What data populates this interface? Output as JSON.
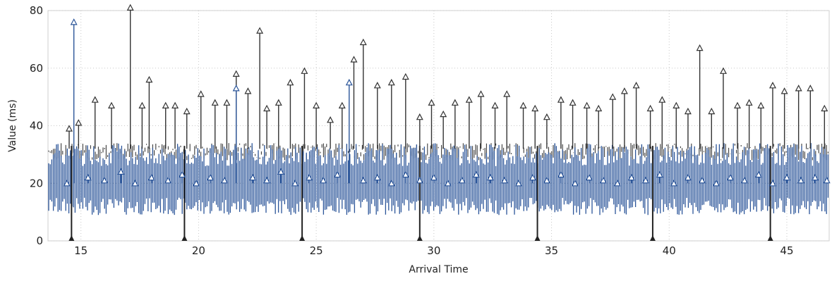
{
  "chart_data": {
    "type": "line",
    "title": "",
    "xlabel": "Arrival Time",
    "ylabel": "Value (ms)",
    "xlim": [
      13.6,
      46.8
    ],
    "ylim": [
      0,
      80
    ],
    "x_ticks": [
      "15",
      "20",
      "25",
      "30",
      "35",
      "40",
      "45"
    ],
    "y_ticks": [
      "0",
      "20",
      "40",
      "60",
      "80"
    ],
    "x_tick_values": [
      15,
      20,
      25,
      30,
      35,
      40,
      45
    ],
    "y_tick_values": [
      0,
      20,
      40,
      60,
      80
    ],
    "grid": true,
    "legend": "none",
    "series_colors": [
      "#333333",
      "#2b5599"
    ],
    "marker": "triangle",
    "series": [
      {
        "x": [
          14.5,
          14.9,
          15.6,
          16.3,
          17.1,
          17.6,
          17.9,
          18.6,
          19.0,
          19.5,
          20.1,
          20.7,
          21.2,
          21.6,
          22.1,
          22.6,
          22.9,
          23.4,
          23.9,
          24.5,
          25.0,
          25.6,
          26.1,
          26.6,
          27.0,
          27.6,
          28.2,
          28.8,
          29.4,
          29.9,
          30.4,
          30.9,
          31.5,
          32.0,
          32.6,
          33.1,
          33.8,
          34.3,
          34.8,
          35.4,
          35.9,
          36.5,
          37.0,
          37.6,
          38.1,
          38.6,
          39.2,
          39.7,
          40.3,
          40.8,
          41.3,
          41.8,
          42.3,
          42.9,
          43.4,
          43.9,
          44.4,
          44.9,
          45.5,
          46.0,
          46.6
        ],
        "values": [
          39,
          41,
          49,
          47,
          81,
          47,
          56,
          47,
          47,
          45,
          51,
          48,
          48,
          58,
          52,
          73,
          46,
          48,
          55,
          59,
          47,
          42,
          47,
          63,
          69,
          54,
          55,
          57,
          43,
          48,
          44,
          48,
          49,
          51,
          47,
          51,
          47,
          46,
          43,
          49,
          48,
          47,
          46,
          50,
          52,
          54,
          46,
          49,
          47,
          45,
          67,
          45,
          59,
          47,
          48,
          47,
          54,
          52,
          53,
          53,
          46
        ]
      },
      {
        "x": [
          14.4,
          14.7,
          15.3,
          16.0,
          16.7,
          17.3,
          18.0,
          18.7,
          19.3,
          19.9,
          20.5,
          21.1,
          21.6,
          22.3,
          22.9,
          23.5,
          24.1,
          24.7,
          25.3,
          25.9,
          26.4,
          27.0,
          27.6,
          28.2,
          28.8,
          29.4,
          30.0,
          30.6,
          31.2,
          31.8,
          32.4,
          33.0,
          33.6,
          34.2,
          34.8,
          35.4,
          36.0,
          36.6,
          37.2,
          37.8,
          38.4,
          39.0,
          39.6,
          40.2,
          40.8,
          41.4,
          42.0,
          42.6,
          43.2,
          43.8,
          44.4,
          45.0,
          45.6,
          46.2,
          46.7
        ],
        "values": [
          20,
          76,
          22,
          21,
          24,
          20,
          22,
          21,
          23,
          20,
          22,
          21,
          53,
          22,
          21,
          24,
          20,
          22,
          21,
          23,
          55,
          21,
          22,
          20,
          23,
          21,
          22,
          20,
          21,
          23,
          22,
          21,
          20,
          22,
          21,
          23,
          20,
          22,
          21,
          20,
          22,
          21,
          23,
          20,
          22,
          21,
          20,
          22,
          21,
          23,
          20,
          22,
          21,
          22,
          21
        ]
      }
    ]
  }
}
